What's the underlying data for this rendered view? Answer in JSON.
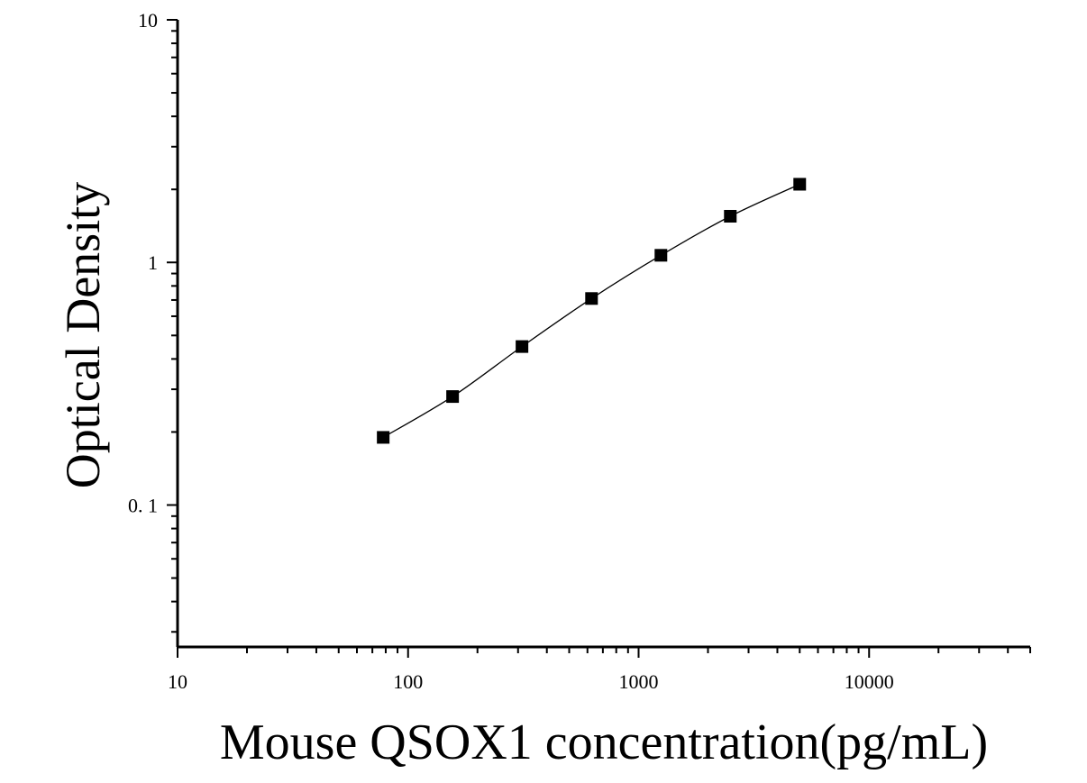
{
  "chart_data": {
    "type": "scatter",
    "xlabel": "Mouse QSOX1 concentration(pg/mL)",
    "ylabel": "Optical Density",
    "x_scale": "log",
    "y_scale": "log",
    "xlim": [
      10,
      50000
    ],
    "ylim": [
      0.026,
      10
    ],
    "x_ticks": [
      {
        "value": 10,
        "label": "10"
      },
      {
        "value": 100,
        "label": "100"
      },
      {
        "value": 1000,
        "label": "1000"
      },
      {
        "value": 10000,
        "label": "10000"
      }
    ],
    "y_ticks": [
      {
        "value": 0.1,
        "label": "0. 1"
      },
      {
        "value": 1,
        "label": "1"
      },
      {
        "value": 10,
        "label": "10"
      }
    ],
    "grid": false,
    "marker": "square",
    "fit_line": true,
    "points": [
      {
        "x": 78,
        "y": 0.19
      },
      {
        "x": 156,
        "y": 0.28
      },
      {
        "x": 312,
        "y": 0.45
      },
      {
        "x": 625,
        "y": 0.71
      },
      {
        "x": 1250,
        "y": 1.07
      },
      {
        "x": 2500,
        "y": 1.55
      },
      {
        "x": 5000,
        "y": 2.1
      }
    ]
  }
}
